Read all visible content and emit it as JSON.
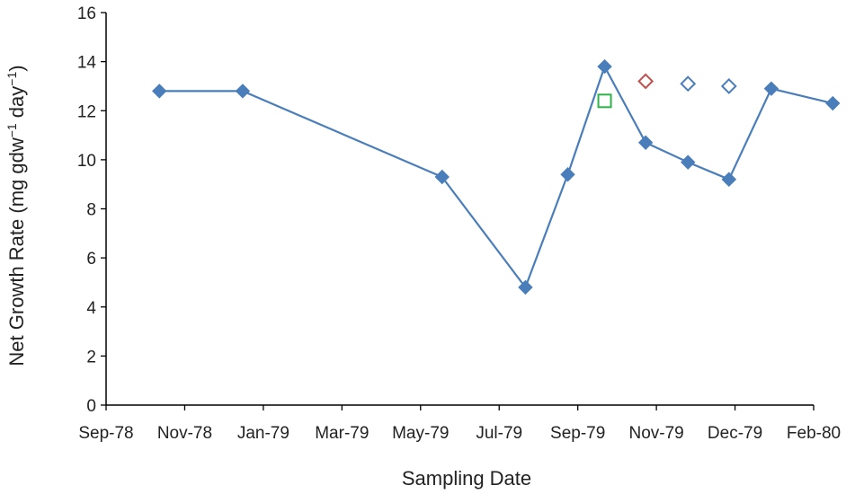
{
  "chart_data": {
    "type": "line",
    "title": "",
    "xlabel": "Sampling Date",
    "ylabel_parts": {
      "main": "Net Growth Rate (mg gdw",
      "sup1": "−1",
      "mid": " day",
      "sup2": "−1",
      "end": ")"
    },
    "x_ticks": [
      "Sep-78",
      "Nov-78",
      "Jan-79",
      "Mar-79",
      "May-79",
      "Jul-79",
      "Sep-79",
      "Nov-79",
      "Dec-79",
      "Feb-80"
    ],
    "y_ticks": [
      "0",
      "2",
      "4",
      "6",
      "8",
      "10",
      "12",
      "14",
      "16"
    ],
    "xlim": [
      "1978-09-01",
      "1980-02-01"
    ],
    "ylim": [
      0,
      16
    ],
    "grid": false,
    "series": [
      {
        "marker": "filled-diamond",
        "color": "#4a7ebb",
        "points": [
          {
            "x": "1978-10-10",
            "y": 12.8
          },
          {
            "x": "1978-12-10",
            "y": 12.8
          },
          {
            "x": "1979-05-05",
            "y": 9.3
          },
          {
            "x": "1979-07-05",
            "y": 4.8
          },
          {
            "x": "1979-08-05",
            "y": 9.4
          },
          {
            "x": "1979-09-01",
            "y": 13.8
          },
          {
            "x": "1979-10-01",
            "y": 10.7
          },
          {
            "x": "1979-11-01",
            "y": 9.9
          },
          {
            "x": "1979-12-01",
            "y": 9.2
          }
        ]
      },
      {
        "marker": "filled-diamond",
        "color": "#4a7ebb",
        "points": [
          {
            "x": "1979-12-01",
            "y": 9.2
          },
          {
            "x": "1980-01-01",
            "y": 12.9
          },
          {
            "x": "1980-02-15",
            "y": 12.3
          }
        ]
      },
      {
        "marker": "open-square",
        "color": "#2db34a",
        "points": [
          {
            "x": "1979-09-01",
            "y": 12.4
          }
        ]
      },
      {
        "marker": "open-diamond",
        "color": "#c0504d",
        "points": [
          {
            "x": "1979-10-01",
            "y": 13.2
          }
        ]
      },
      {
        "marker": "open-diamond",
        "color": "#4a7ebb",
        "points": [
          {
            "x": "1979-11-01",
            "y": 13.1
          },
          {
            "x": "1979-12-01",
            "y": 13.0
          }
        ]
      }
    ]
  }
}
